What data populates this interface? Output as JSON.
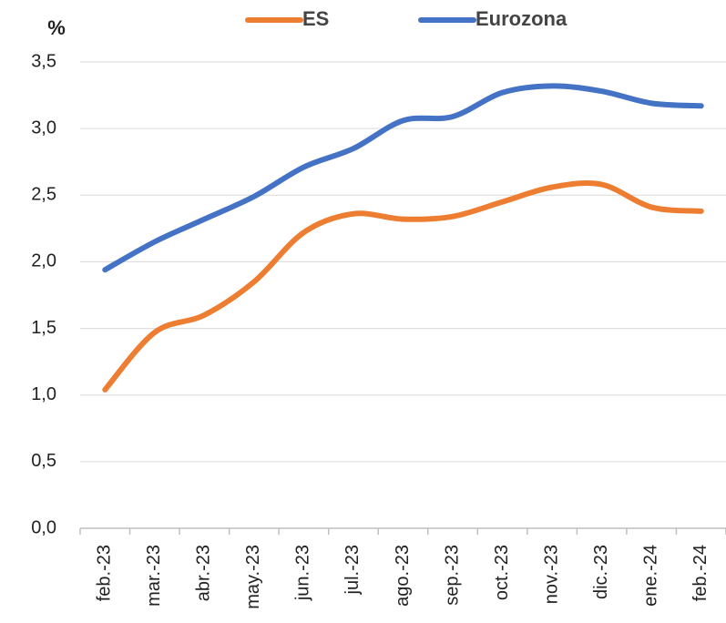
{
  "chart_data": {
    "type": "line",
    "y_label": "%",
    "categories": [
      "feb.-23",
      "mar.-23",
      "abr.-23",
      "may.-23",
      "jun.-23",
      "jul.-23",
      "ago.-23",
      "sep.-23",
      "oct.-23",
      "nov.-23",
      "dic.-23",
      "ene.-24",
      "feb.-24"
    ],
    "series": [
      {
        "name": "ES",
        "color": "#ed7d31",
        "values": [
          1.04,
          1.47,
          1.6,
          1.85,
          2.22,
          2.36,
          2.32,
          2.34,
          2.45,
          2.56,
          2.58,
          2.41,
          2.38
        ]
      },
      {
        "name": "Eurozona",
        "color": "#4472c4",
        "values": [
          1.94,
          2.15,
          2.32,
          2.49,
          2.71,
          2.85,
          3.06,
          3.09,
          3.27,
          3.32,
          3.28,
          3.19,
          3.17
        ]
      }
    ],
    "ylim": [
      0,
      3.5
    ],
    "yticks": [
      {
        "value": 0,
        "label": "0,0"
      },
      {
        "value": 0.5,
        "label": "0,5"
      },
      {
        "value": 1,
        "label": "1,0"
      },
      {
        "value": 1.5,
        "label": "1,5"
      },
      {
        "value": 2,
        "label": "2,0"
      },
      {
        "value": 2.5,
        "label": "2,5"
      },
      {
        "value": 3,
        "label": "3,0"
      },
      {
        "value": 3.5,
        "label": "3,5"
      }
    ],
    "grid": true,
    "legend": "top"
  }
}
